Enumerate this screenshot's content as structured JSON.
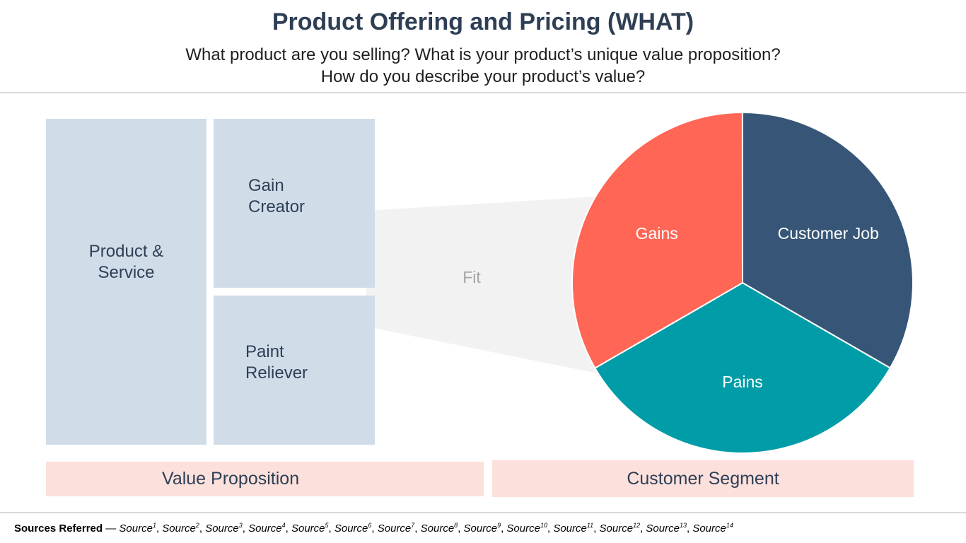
{
  "header": {
    "title": "Product Offering and Pricing (WHAT)",
    "subtitle_line1": "What product are you selling? What is your product’s unique value proposition?",
    "subtitle_line2": "How do you describe your product’s value?"
  },
  "value_map": {
    "product_service": [
      "Product &",
      "Service"
    ],
    "gain_creator": [
      "Gain",
      "Creator"
    ],
    "pain_reliever": [
      "Paint",
      "Reliever"
    ]
  },
  "fit_label": "Fit",
  "customer_profile": {
    "segments": [
      {
        "label": "Customer Job",
        "share": 0.3333,
        "color": "#375677"
      },
      {
        "label": "Pains",
        "share": 0.3333,
        "color": "#009ca7"
      },
      {
        "label": "Gains",
        "share": 0.3333,
        "color": "#ff6655"
      }
    ]
  },
  "labels": {
    "value_proposition": "Value Proposition",
    "customer_segment": "Customer Segment"
  },
  "colors": {
    "box_fill": "#d0dde9",
    "label_bar_fill": "#fce0dc",
    "fit_band": "#f2f2f2",
    "title": "#2e3f55"
  },
  "footer": {
    "prefix": "Sources Referred",
    "dash": " — ",
    "source_word": "Source",
    "sources": [
      "1",
      "2",
      "3",
      "4",
      "5",
      "6",
      "7",
      "8",
      "9",
      "10",
      "11",
      "12",
      "13",
      "14"
    ]
  }
}
